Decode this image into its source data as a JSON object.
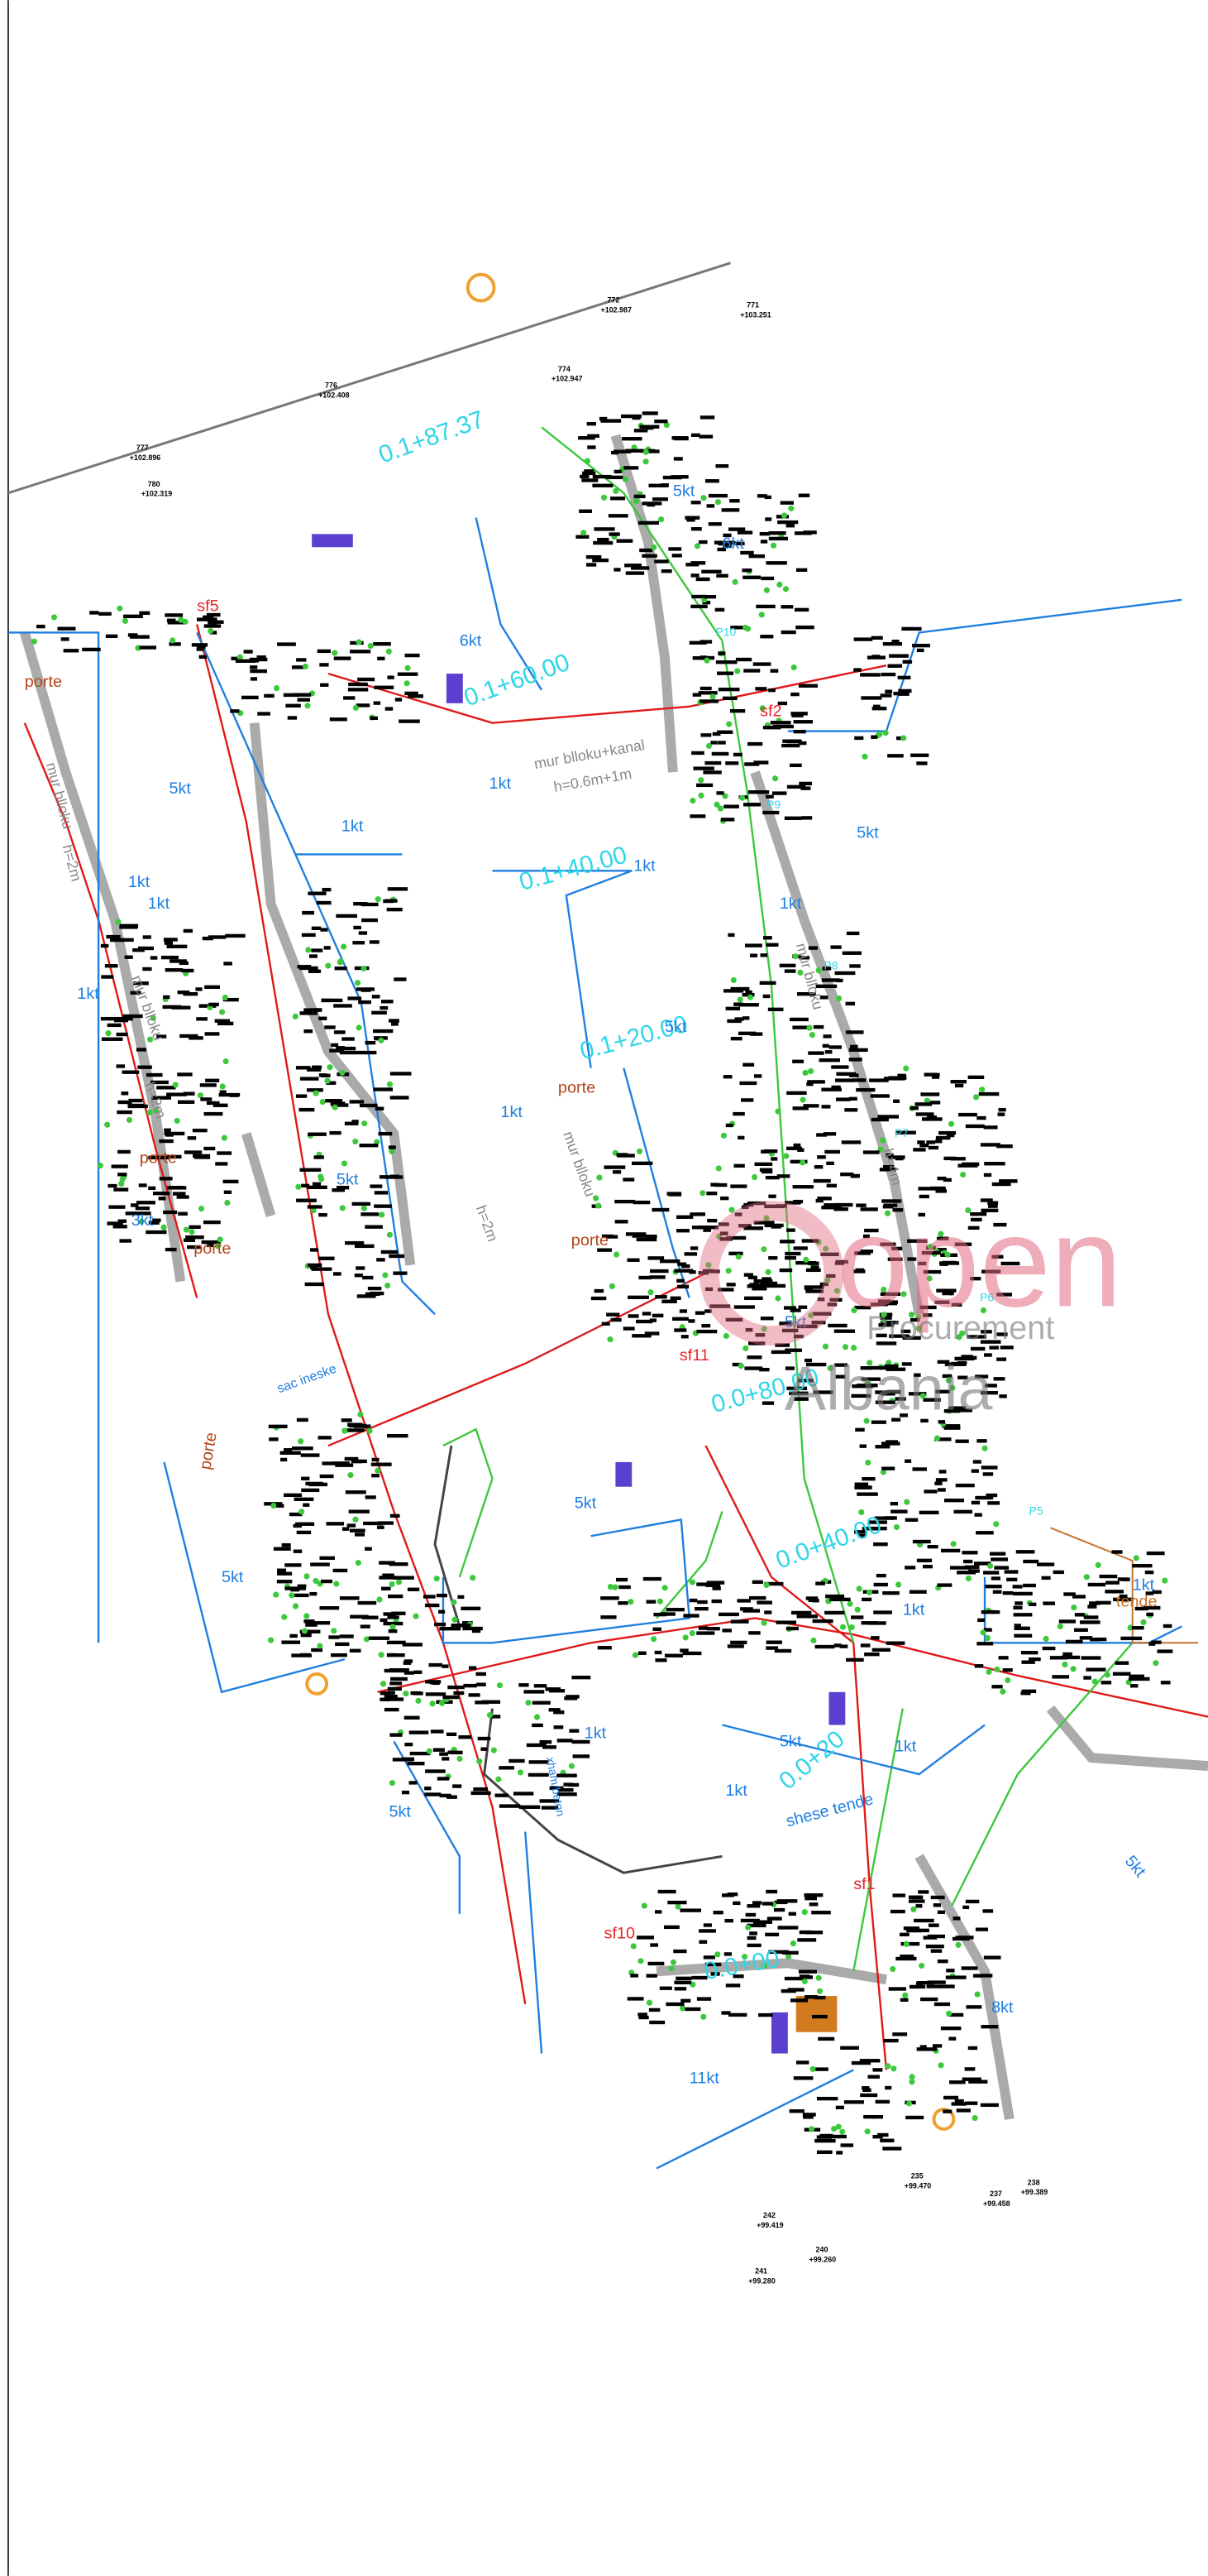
{
  "chainages": [
    "0.1+87.37",
    "0.1+60.00",
    "0.1+40.00",
    "0.1+20.00",
    "0.0+80.00",
    "0.0+40.00",
    "0.0+20",
    "0.0+00"
  ],
  "zones": [
    "5kt",
    "6kt",
    "6kt",
    "5kt",
    "1kt",
    "1kt",
    "5kt",
    "1kt",
    "1kt",
    "1kt",
    "5kt",
    "1kt",
    "3kt",
    "5kt",
    "5kt",
    "5kt",
    "5kt",
    "1kt",
    "1kt",
    "1kt",
    "1kt",
    "1kt",
    "5kt",
    "5kt",
    "8kt",
    "11kt",
    "5kt",
    "1kt",
    "1kt"
  ],
  "notes": [
    "mur blloku",
    "h=2m",
    "mur blloku",
    "h=2m",
    "mur blloku+kanal",
    "h=0.6m+1m",
    "mur blloku",
    "h=4m",
    "mur blloku",
    "h=2m",
    "tende",
    "shese tende",
    "xham/beton",
    "sac ineske"
  ],
  "doors": [
    "porte",
    "porte",
    "porte",
    "porte",
    "porte",
    "porte"
  ],
  "stations": [
    "sf1",
    "sf10",
    "sf11",
    "sf2",
    "sf5"
  ],
  "profiles": [
    "P5",
    "P6",
    "P7",
    "P8",
    "P9",
    "P10"
  ],
  "points": [
    {
      "id": "772",
      "elev": "+102.987"
    },
    {
      "id": "777",
      "elev": "+102.896"
    },
    {
      "id": "776",
      "elev": "+102.408"
    },
    {
      "id": "774",
      "elev": "+102.947"
    },
    {
      "id": "771",
      "elev": "+103.251"
    },
    {
      "id": "780",
      "elev": "+102.319"
    },
    {
      "id": "242",
      "elev": "+99.419"
    },
    {
      "id": "241",
      "elev": "+99.280"
    },
    {
      "id": "240",
      "elev": "+99.260"
    },
    {
      "id": "237",
      "elev": "+99.458"
    },
    {
      "id": "235",
      "elev": "+99.470"
    },
    {
      "id": "238",
      "elev": "+99.389"
    }
  ],
  "watermark": [
    "open",
    "Procurement",
    "Albania"
  ]
}
